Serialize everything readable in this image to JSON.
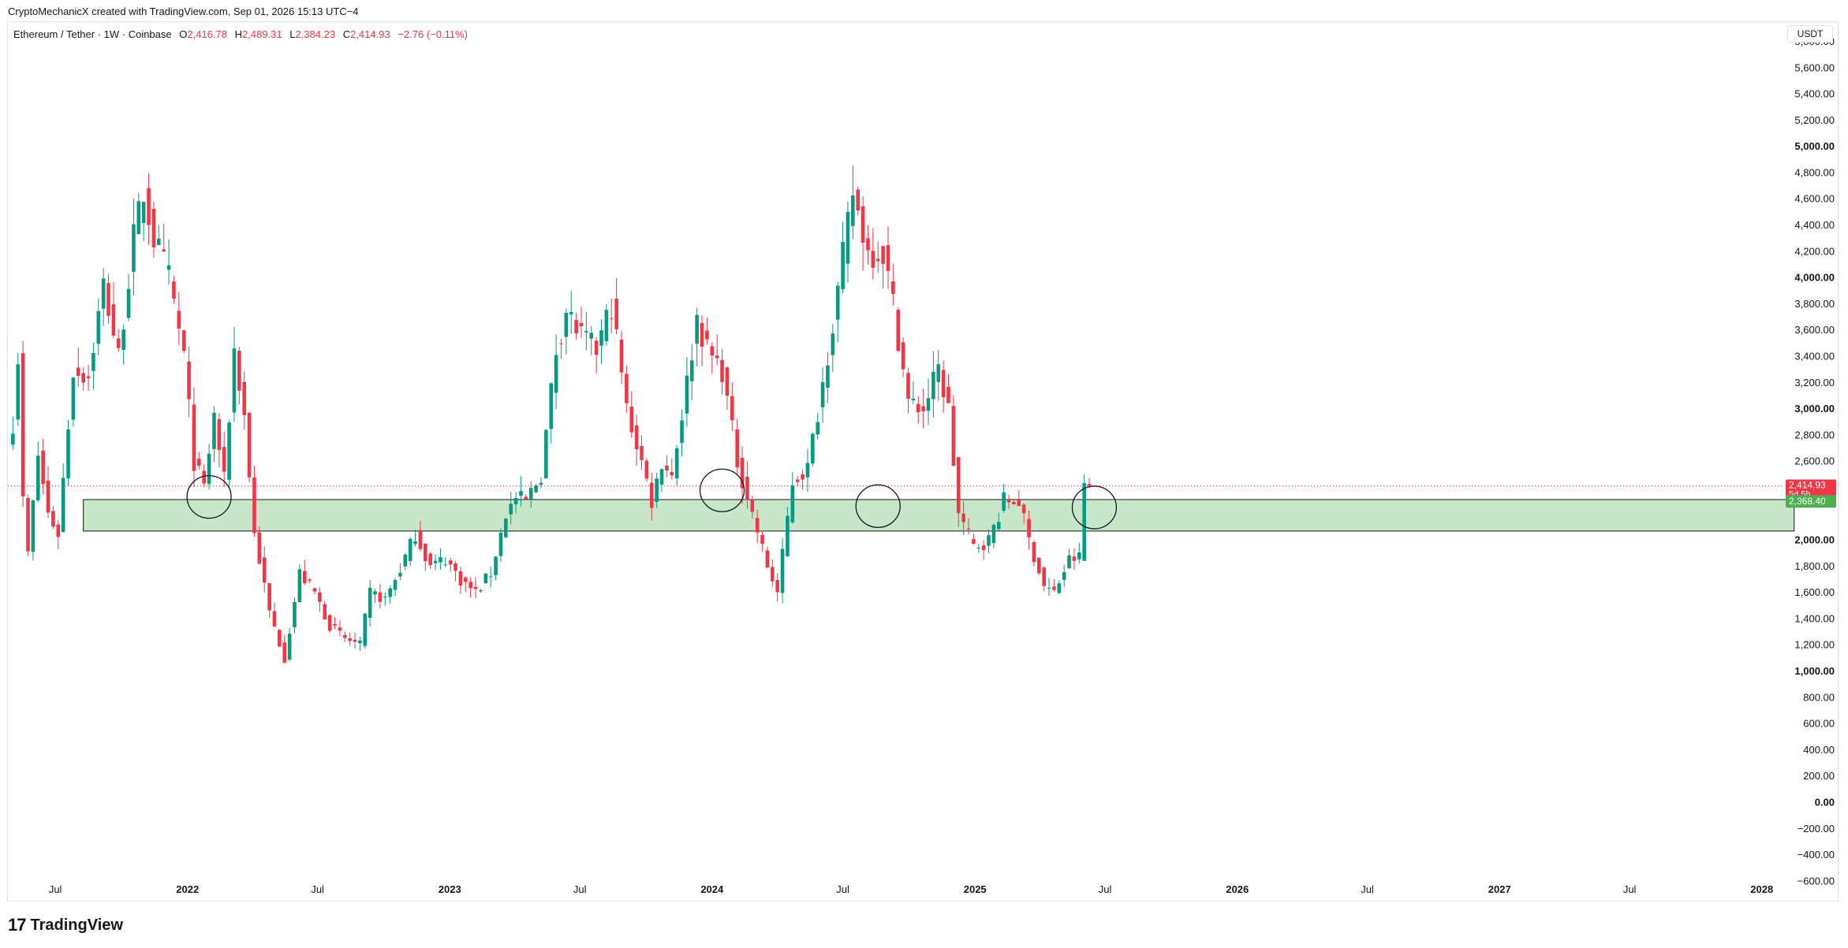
{
  "header": {
    "credit": "CryptoMechanicX created with TradingView.com, Sep 01, 2026 15:13 UTC−4",
    "symbol": "Ethereum / Tether · 1W · Coinbase",
    "o_label": "O",
    "o_value": "2,416.78",
    "h_label": "H",
    "h_value": "2,489.31",
    "l_label": "L",
    "l_value": "2,384.23",
    "c_label": "C",
    "c_value": "2,414.93",
    "change": "−2.76 (−0.11%)"
  },
  "currency": "USDT",
  "footer": {
    "brand": "TradingView",
    "logo_mark": "17"
  },
  "colors": {
    "up": "#089981",
    "down": "#f23645",
    "zone": "#c8e6c9",
    "price_badge": "#f23645",
    "zone_badge": "#4caf50"
  },
  "chart_data": {
    "type": "candlestick",
    "title": "",
    "symbol": "ETH/USDT",
    "timeframe": "1W",
    "x_start": "2021-04-26",
    "x_end": "2028-02-01",
    "ylim": [
      -700,
      5950
    ],
    "y_ticks": [
      {
        "v": 5800,
        "label": "5,800.00",
        "bold": false
      },
      {
        "v": 5600,
        "label": "5,600.00",
        "bold": false
      },
      {
        "v": 5400,
        "label": "5,400.00",
        "bold": false
      },
      {
        "v": 5200,
        "label": "5,200.00",
        "bold": false
      },
      {
        "v": 5000,
        "label": "5,000.00",
        "bold": true
      },
      {
        "v": 4800,
        "label": "4,800.00",
        "bold": false
      },
      {
        "v": 4600,
        "label": "4,600.00",
        "bold": false
      },
      {
        "v": 4400,
        "label": "4,400.00",
        "bold": false
      },
      {
        "v": 4200,
        "label": "4,200.00",
        "bold": false
      },
      {
        "v": 4000,
        "label": "4,000.00",
        "bold": true
      },
      {
        "v": 3800,
        "label": "3,800.00",
        "bold": false
      },
      {
        "v": 3600,
        "label": "3,600.00",
        "bold": false
      },
      {
        "v": 3400,
        "label": "3,400.00",
        "bold": false
      },
      {
        "v": 3200,
        "label": "3,200.00",
        "bold": false
      },
      {
        "v": 3000,
        "label": "3,000.00",
        "bold": true
      },
      {
        "v": 2800,
        "label": "2,800.00",
        "bold": false
      },
      {
        "v": 2600,
        "label": "2,600.00",
        "bold": false
      },
      {
        "v": 2000,
        "label": "2,000.00",
        "bold": true
      },
      {
        "v": 1800,
        "label": "1,800.00",
        "bold": false
      },
      {
        "v": 1600,
        "label": "1,600.00",
        "bold": false
      },
      {
        "v": 1400,
        "label": "1,400.00",
        "bold": false
      },
      {
        "v": 1200,
        "label": "1,200.00",
        "bold": false
      },
      {
        "v": 1000,
        "label": "1,000.00",
        "bold": true
      },
      {
        "v": 800,
        "label": "800.00",
        "bold": false
      },
      {
        "v": 600,
        "label": "600.00",
        "bold": false
      },
      {
        "v": 400,
        "label": "400.00",
        "bold": false
      },
      {
        "v": 200,
        "label": "200.00",
        "bold": false
      },
      {
        "v": 0,
        "label": "0.00",
        "bold": true
      },
      {
        "v": -200,
        "label": "−200.00",
        "bold": false
      },
      {
        "v": -400,
        "label": "−400.00",
        "bold": false
      },
      {
        "v": -600,
        "label": "−600.00",
        "bold": false
      }
    ],
    "x_ticks": [
      {
        "date": "2021-07-01",
        "label": "Jul",
        "bold": false
      },
      {
        "date": "2022-01-01",
        "label": "2022",
        "bold": true
      },
      {
        "date": "2022-07-01",
        "label": "Jul",
        "bold": false
      },
      {
        "date": "2023-01-01",
        "label": "2023",
        "bold": true
      },
      {
        "date": "2023-07-01",
        "label": "Jul",
        "bold": false
      },
      {
        "date": "2024-01-01",
        "label": "2024",
        "bold": true
      },
      {
        "date": "2024-07-01",
        "label": "Jul",
        "bold": false
      },
      {
        "date": "2025-01-01",
        "label": "2025",
        "bold": true
      },
      {
        "date": "2025-07-01",
        "label": "Jul",
        "bold": false
      },
      {
        "date": "2026-01-01",
        "label": "2026",
        "bold": true
      },
      {
        "date": "2026-07-01",
        "label": "Jul",
        "bold": false
      },
      {
        "date": "2027-01-01",
        "label": "2027",
        "bold": true
      },
      {
        "date": "2027-07-01",
        "label": "Jul",
        "bold": false
      },
      {
        "date": "2028-01-01",
        "label": "2028",
        "bold": true
      }
    ],
    "candle_start": "2021-05-03",
    "candle_interval_days": 7,
    "close_path": [
      [
        0,
        2900
      ],
      [
        1,
        3400
      ],
      [
        2,
        2300
      ],
      [
        3,
        1900
      ],
      [
        5,
        2650
      ],
      [
        7,
        2200
      ],
      [
        9,
        2050
      ],
      [
        12,
        3300
      ],
      [
        15,
        3250
      ],
      [
        18,
        3950
      ],
      [
        21,
        3400
      ],
      [
        24,
        4300
      ],
      [
        26,
        4650
      ],
      [
        28,
        4300
      ],
      [
        31,
        4000
      ],
      [
        34,
        3400
      ],
      [
        36,
        2600
      ],
      [
        38,
        2400
      ],
      [
        40,
        2950
      ],
      [
        42,
        2450
      ],
      [
        44,
        3450
      ],
      [
        46,
        2950
      ],
      [
        48,
        2050
      ],
      [
        51,
        1450
      ],
      [
        54,
        1100
      ],
      [
        57,
        1750
      ],
      [
        60,
        1600
      ],
      [
        63,
        1350
      ],
      [
        66,
        1250
      ],
      [
        69,
        1200
      ],
      [
        71,
        1600
      ],
      [
        74,
        1550
      ],
      [
        77,
        1780
      ],
      [
        80,
        2050
      ],
      [
        83,
        1800
      ],
      [
        86,
        1860
      ],
      [
        89,
        1700
      ],
      [
        92,
        1600
      ],
      [
        95,
        1750
      ],
      [
        98,
        2200
      ],
      [
        100,
        2320
      ],
      [
        102,
        2300
      ],
      [
        105,
        2500
      ],
      [
        108,
        3450
      ],
      [
        110,
        3750
      ],
      [
        113,
        3550
      ],
      [
        116,
        3450
      ],
      [
        119,
        3800
      ],
      [
        122,
        3000
      ],
      [
        125,
        2600
      ],
      [
        127,
        2300
      ],
      [
        129,
        2600
      ],
      [
        131,
        2500
      ],
      [
        134,
        3200
      ],
      [
        136,
        3700
      ],
      [
        138,
        3450
      ],
      [
        141,
        3300
      ],
      [
        144,
        2600
      ],
      [
        147,
        2200
      ],
      [
        150,
        1800
      ],
      [
        152,
        1600
      ],
      [
        155,
        2450
      ],
      [
        158,
        2550
      ],
      [
        161,
        3200
      ],
      [
        164,
        3900
      ],
      [
        167,
        4650
      ],
      [
        170,
        4200
      ],
      [
        173,
        4200
      ],
      [
        175,
        3800
      ],
      [
        178,
        3050
      ],
      [
        181,
        3000
      ],
      [
        184,
        3300
      ],
      [
        186,
        3000
      ],
      [
        188,
        2200
      ],
      [
        191,
        1950
      ],
      [
        194,
        2000
      ],
      [
        197,
        2300
      ],
      [
        200,
        2300
      ],
      [
        202,
        2000
      ],
      [
        205,
        1650
      ],
      [
        207,
        1600
      ],
      [
        210,
        1850
      ],
      [
        212,
        1870
      ],
      [
        213,
        2430
      ],
      [
        214,
        2415
      ]
    ],
    "support_zone": {
      "low": 2070,
      "high": 2310,
      "from": "2021-08-09",
      "to": "2028-02-15"
    },
    "current_price": {
      "value": 2414.93,
      "label": "2,414.93",
      "countdown": "5d 5h"
    },
    "zone_label": {
      "value": 2368.4,
      "label": "2,368.40"
    },
    "highlight_ellipses": [
      {
        "date": "2022-01-31",
        "price": 2330
      },
      {
        "date": "2024-01-15",
        "price": 2380
      },
      {
        "date": "2024-08-19",
        "price": 2260
      },
      {
        "date": "2025-06-16",
        "price": 2250
      }
    ]
  }
}
